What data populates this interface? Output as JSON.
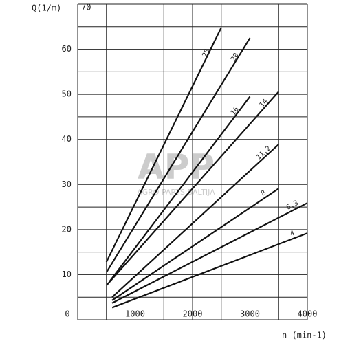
{
  "chart_data": {
    "type": "line",
    "y_label": "Q(1/m)",
    "x_label": "n (min-1)",
    "watermark": "APP",
    "watermark_sub": "AGRO PARTS BALTIJA",
    "xlim": [
      0,
      4000
    ],
    "ylim": [
      0,
      70
    ],
    "xticks": [
      0,
      1000,
      2000,
      3000,
      4000
    ],
    "yticks": [
      10,
      20,
      30,
      40,
      50,
      60,
      70
    ],
    "xgrid": [
      0,
      500,
      1000,
      1500,
      2000,
      2500,
      3000,
      3500,
      4000
    ],
    "ygrid": [
      0,
      5,
      10,
      15,
      20,
      25,
      30,
      35,
      40,
      45,
      50,
      55,
      60,
      65,
      70
    ],
    "color": "#111",
    "series": [
      {
        "name": "25",
        "x": [
          500,
          2500
        ],
        "values": [
          12.8,
          64.8
        ]
      },
      {
        "name": "20",
        "x": [
          500,
          3000
        ],
        "values": [
          10.5,
          62.5
        ]
      },
      {
        "name": "16",
        "x": [
          550,
          3000
        ],
        "values": [
          8.4,
          49.5
        ]
      },
      {
        "name": "14",
        "x": [
          500,
          3500
        ],
        "values": [
          7.6,
          50.6
        ]
      },
      {
        "name": "11,2",
        "x": [
          600,
          3500
        ],
        "values": [
          5,
          38.9
        ]
      },
      {
        "name": "8",
        "x": [
          600,
          3500
        ],
        "values": [
          4.3,
          29.1
        ]
      },
      {
        "name": "6,3",
        "x": [
          600,
          4000
        ],
        "values": [
          3.7,
          25.9
        ]
      },
      {
        "name": "4",
        "x": [
          600,
          4000
        ],
        "values": [
          2.7,
          19.2
        ]
      }
    ]
  }
}
